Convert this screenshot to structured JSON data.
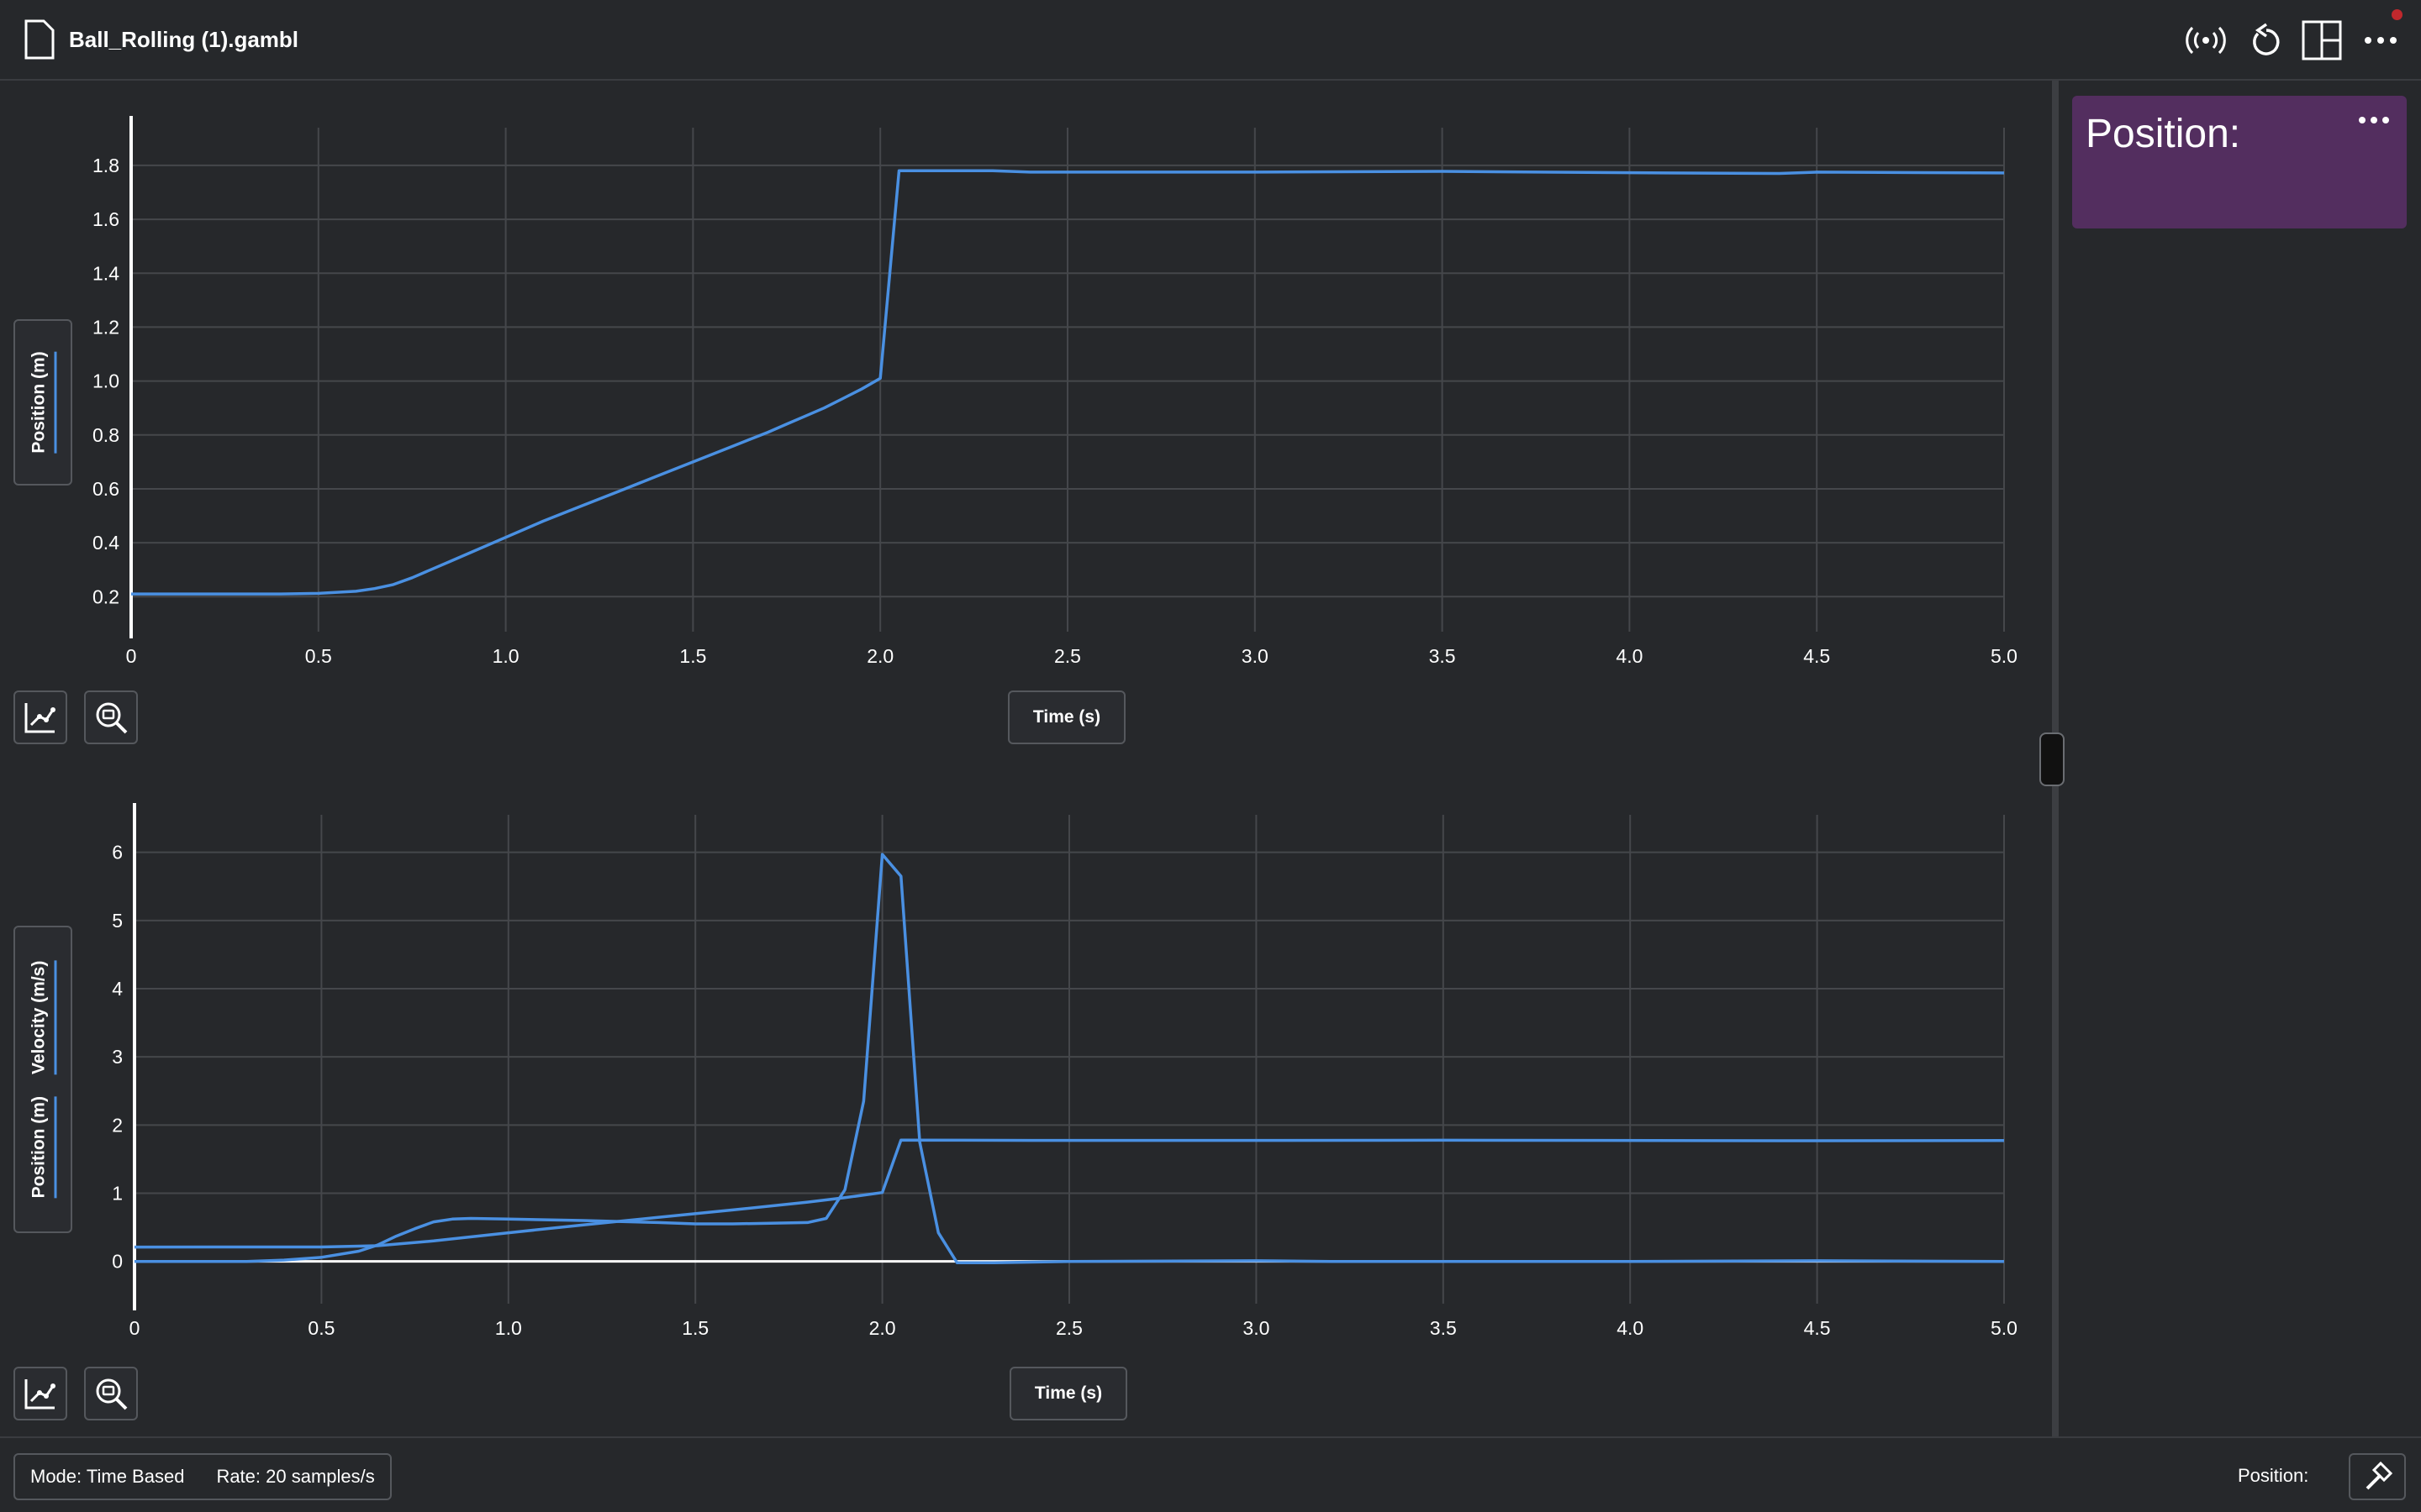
{
  "app": {
    "file_name": "Ball_Rolling (1).gambl"
  },
  "toolbar": {
    "icons": [
      "wireless-icon",
      "reset-icon",
      "layout-icon",
      "more-icon"
    ],
    "notification_color": "#c0282d"
  },
  "graph1": {
    "y_label": "Position (m)",
    "x_button_label": "Time (s)"
  },
  "graph2": {
    "y_labels": [
      "Position (m)",
      "Velocity (m/s)"
    ],
    "x_button_label": "Time (s)"
  },
  "meter": {
    "title": "Position:",
    "color": "#532e5f"
  },
  "footer": {
    "mode": "Mode: Time Based",
    "rate": "Rate: 20 samples/s",
    "position_label": "Position:"
  },
  "chart_data": [
    {
      "type": "line",
      "xlabel": "Time (s)",
      "ylabel": "Position (m)",
      "xlim": [
        0,
        5
      ],
      "ylim": [
        0.07,
        1.94
      ],
      "x_ticks": [
        "0",
        "0.5",
        "1.0",
        "1.5",
        "2.0",
        "2.5",
        "3.0",
        "3.5",
        "4.0",
        "4.5",
        "5.0"
      ],
      "y_ticks": [
        "0.2",
        "0.4",
        "0.6",
        "0.8",
        "1.0",
        "1.2",
        "1.4",
        "1.6",
        "1.8"
      ],
      "grid": true,
      "series": [
        {
          "color": "#4a90e2",
          "points": [
            [
              0,
              0.21
            ],
            [
              0.1,
              0.21
            ],
            [
              0.2,
              0.21
            ],
            [
              0.3,
              0.21
            ],
            [
              0.4,
              0.21
            ],
            [
              0.5,
              0.212
            ],
            [
              0.6,
              0.22
            ],
            [
              0.65,
              0.23
            ],
            [
              0.7,
              0.245
            ],
            [
              0.75,
              0.27
            ],
            [
              0.8,
              0.3
            ],
            [
              0.85,
              0.33
            ],
            [
              0.9,
              0.36
            ],
            [
              1.0,
              0.42
            ],
            [
              1.1,
              0.48
            ],
            [
              1.2,
              0.535
            ],
            [
              1.3,
              0.59
            ],
            [
              1.4,
              0.645
            ],
            [
              1.5,
              0.7
            ],
            [
              1.6,
              0.755
            ],
            [
              1.7,
              0.81
            ],
            [
              1.75,
              0.84
            ],
            [
              1.8,
              0.87
            ],
            [
              1.85,
              0.9
            ],
            [
              1.9,
              0.935
            ],
            [
              1.95,
              0.97
            ],
            [
              2.0,
              1.01
            ],
            [
              2.05,
              1.78
            ],
            [
              2.3,
              1.78
            ],
            [
              2.4,
              1.775
            ],
            [
              3.0,
              1.775
            ],
            [
              3.5,
              1.778
            ],
            [
              4.1,
              1.772
            ],
            [
              4.4,
              1.77
            ],
            [
              4.5,
              1.775
            ],
            [
              5.0,
              1.772
            ]
          ]
        }
      ]
    },
    {
      "type": "line",
      "xlabel": "Time (s)",
      "ylabel": "Position (m) / Velocity (m/s)",
      "xlim": [
        0,
        5
      ],
      "ylim": [
        -0.62,
        6.55
      ],
      "x_ticks": [
        "0",
        "0.5",
        "1.0",
        "1.5",
        "2.0",
        "2.5",
        "3.0",
        "3.5",
        "4.0",
        "4.5",
        "5.0"
      ],
      "y_ticks": [
        "0",
        "1",
        "2",
        "3",
        "4",
        "5",
        "6"
      ],
      "grid": true,
      "series": [
        {
          "label": "Position (m)",
          "color": "#4a90e2",
          "points": [
            [
              0,
              0.21
            ],
            [
              0.5,
              0.212
            ],
            [
              0.65,
              0.23
            ],
            [
              0.8,
              0.3
            ],
            [
              1.0,
              0.42
            ],
            [
              1.2,
              0.535
            ],
            [
              1.4,
              0.645
            ],
            [
              1.6,
              0.755
            ],
            [
              1.8,
              0.87
            ],
            [
              1.9,
              0.935
            ],
            [
              2.0,
              1.01
            ],
            [
              2.05,
              1.78
            ],
            [
              2.4,
              1.775
            ],
            [
              3.0,
              1.775
            ],
            [
              3.5,
              1.778
            ],
            [
              4.4,
              1.77
            ],
            [
              5.0,
              1.772
            ]
          ]
        },
        {
          "label": "Velocity (m/s)",
          "color": "#4a90e2",
          "points": [
            [
              0,
              0.0
            ],
            [
              0.3,
              0.0
            ],
            [
              0.4,
              0.02
            ],
            [
              0.5,
              0.06
            ],
            [
              0.6,
              0.15
            ],
            [
              0.65,
              0.24
            ],
            [
              0.7,
              0.37
            ],
            [
              0.75,
              0.48
            ],
            [
              0.8,
              0.58
            ],
            [
              0.85,
              0.62
            ],
            [
              0.9,
              0.63
            ],
            [
              1.0,
              0.62
            ],
            [
              1.2,
              0.6
            ],
            [
              1.4,
              0.57
            ],
            [
              1.5,
              0.55
            ],
            [
              1.6,
              0.55
            ],
            [
              1.7,
              0.56
            ],
            [
              1.8,
              0.57
            ],
            [
              1.85,
              0.63
            ],
            [
              1.9,
              1.05
            ],
            [
              1.95,
              2.35
            ],
            [
              2.0,
              5.97
            ],
            [
              2.05,
              5.65
            ],
            [
              2.1,
              1.75
            ],
            [
              2.15,
              0.42
            ],
            [
              2.2,
              -0.02
            ],
            [
              2.3,
              -0.02
            ],
            [
              2.5,
              0.0
            ],
            [
              3.0,
              0.01
            ],
            [
              3.2,
              0.0
            ],
            [
              3.5,
              0.0
            ],
            [
              4.0,
              0.0
            ],
            [
              4.5,
              0.01
            ],
            [
              5.0,
              0.0
            ]
          ]
        }
      ]
    }
  ]
}
